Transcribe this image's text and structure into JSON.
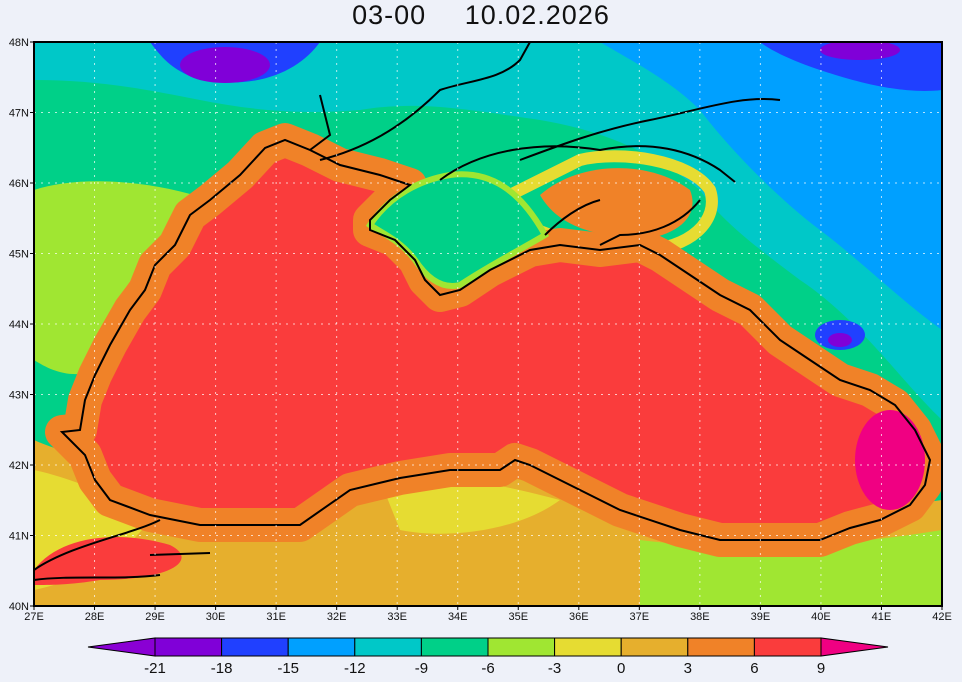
{
  "title": {
    "time": "03-00",
    "date": "10.02.2026"
  },
  "map": {
    "lon_ticks": [
      "27E",
      "28E",
      "29E",
      "30E",
      "31E",
      "32E",
      "33E",
      "34E",
      "35E",
      "36E",
      "37E",
      "38E",
      "39E",
      "40E",
      "41E",
      "42E"
    ],
    "lat_ticks": [
      "40N",
      "41N",
      "42N",
      "43N",
      "44N",
      "45N",
      "46N",
      "47N",
      "48N"
    ],
    "lon_range": [
      27,
      42
    ],
    "lat_range": [
      40,
      48
    ],
    "grid": true
  },
  "colorbar": {
    "labels": [
      "-21",
      "-18",
      "-15",
      "-12",
      "-9",
      "-6",
      "-3",
      "0",
      "3",
      "6",
      "9"
    ],
    "colors": [
      "#8a00d4",
      "#8000d8",
      "#2040ff",
      "#00a0ff",
      "#00c8c8",
      "#00d088",
      "#a0e632",
      "#e6dc32",
      "#e6af2d",
      "#f08228",
      "#fa3c3c",
      "#f00082"
    ]
  }
}
